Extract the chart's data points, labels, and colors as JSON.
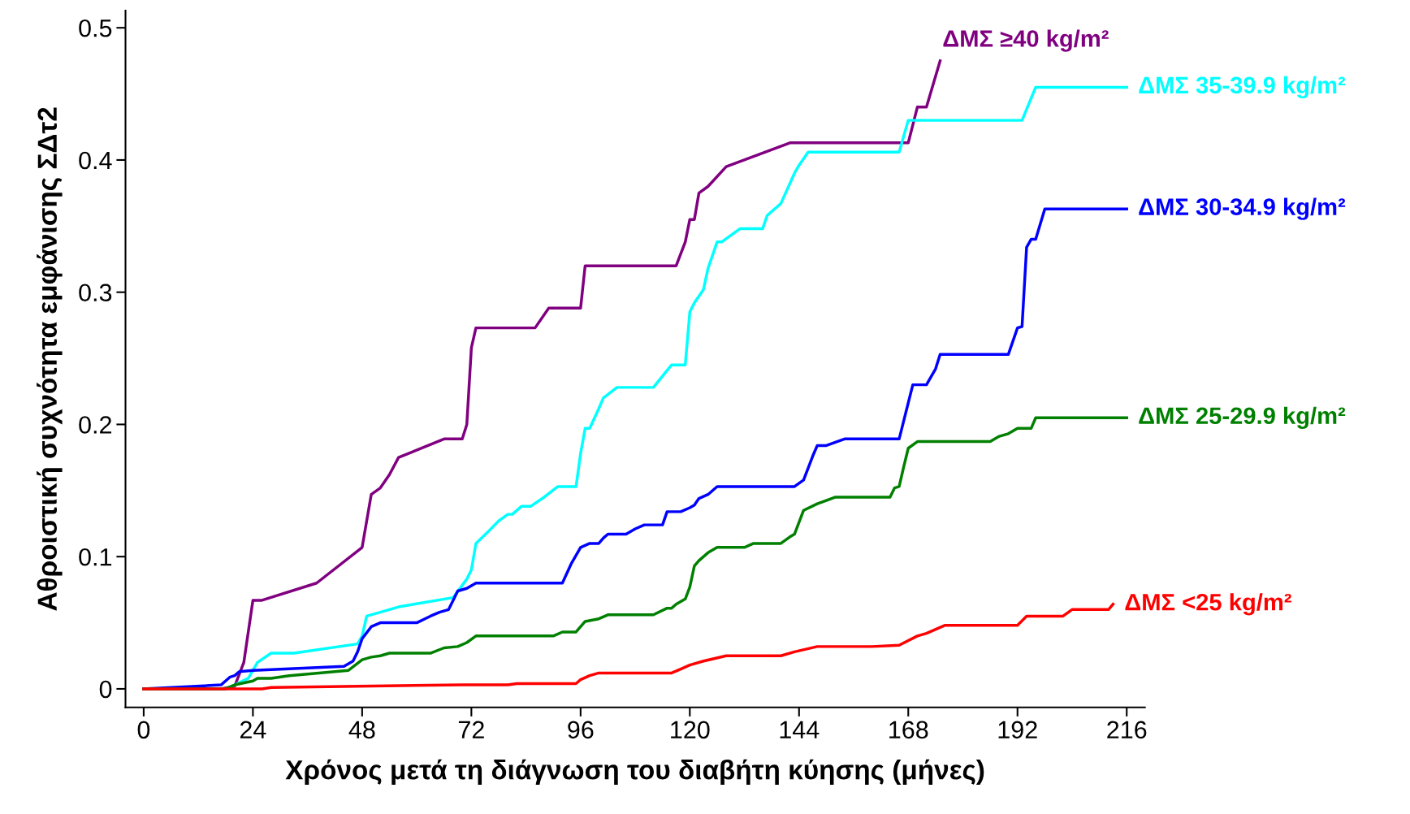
{
  "chart_data": {
    "type": "line",
    "xlabel": "Χρόνος μετά τη διάγνωση του διαβήτη κύησης (μήνες)",
    "ylabel": "Αθροιστική συχνότητα εμφάνισης ΣΔτ2",
    "xlim": [
      -4,
      220
    ],
    "ylim": [
      -0.014,
      0.513
    ],
    "xticks": [
      0,
      24,
      48,
      72,
      96,
      120,
      144,
      168,
      192,
      216
    ],
    "yticks": [
      0,
      0.1,
      0.2,
      0.3,
      0.4,
      0.5
    ],
    "grid": false,
    "legend": false,
    "line_style": "solid",
    "marker": "none",
    "series": [
      {
        "name": "ΔΜΣ ≥40 kg/m²",
        "color": "#800080",
        "x": [
          0,
          17,
          20,
          22,
          24,
          26,
          38,
          48,
          50,
          52,
          54,
          56,
          66,
          70,
          71,
          72,
          73,
          86,
          89,
          96,
          97,
          117,
          119,
          120,
          121,
          122,
          124,
          128,
          142,
          168,
          170,
          172,
          175
        ],
        "values": [
          0,
          0,
          0.002,
          0.02,
          0.067,
          0.067,
          0.08,
          0.107,
          0.147,
          0.152,
          0.162,
          0.175,
          0.189,
          0.189,
          0.2,
          0.258,
          0.273,
          0.273,
          0.288,
          0.288,
          0.32,
          0.32,
          0.338,
          0.355,
          0.355,
          0.375,
          0.38,
          0.395,
          0.413,
          0.413,
          0.44,
          0.44,
          0.475
        ]
      },
      {
        "name": "ΔΜΣ 35-39.9 kg/m²",
        "color": "#00ffff",
        "x": [
          0,
          18,
          20,
          23,
          25,
          28,
          33,
          47,
          48,
          49,
          52,
          56,
          68,
          71,
          72,
          73,
          76,
          78,
          80,
          81,
          83,
          85,
          88,
          91,
          95,
          96,
          97,
          98,
          100,
          101,
          104,
          112,
          116,
          119,
          120,
          121,
          123,
          124,
          126,
          127,
          131,
          136,
          137,
          140,
          143,
          144,
          146,
          166,
          168,
          193,
          196,
          216
        ],
        "values": [
          0,
          0,
          0.003,
          0.008,
          0.02,
          0.027,
          0.027,
          0.034,
          0.04,
          0.055,
          0.058,
          0.062,
          0.069,
          0.083,
          0.09,
          0.11,
          0.12,
          0.127,
          0.132,
          0.132,
          0.138,
          0.138,
          0.145,
          0.153,
          0.153,
          0.178,
          0.197,
          0.197,
          0.212,
          0.22,
          0.228,
          0.228,
          0.245,
          0.245,
          0.285,
          0.292,
          0.302,
          0.318,
          0.338,
          0.338,
          0.348,
          0.348,
          0.358,
          0.367,
          0.39,
          0.396,
          0.406,
          0.406,
          0.43,
          0.43,
          0.455,
          0.455
        ]
      },
      {
        "name": "ΔΜΣ 30-34.9 kg/m²",
        "color": "#0000ff",
        "x": [
          0,
          17,
          19,
          20,
          21,
          24,
          44,
          46,
          47,
          48,
          50,
          52,
          60,
          63,
          65,
          67,
          68,
          69,
          71,
          73,
          92,
          94,
          96,
          98,
          100,
          101,
          102,
          106,
          108,
          110,
          114,
          115,
          118,
          120,
          121,
          122,
          124,
          126,
          143,
          145,
          147,
          148,
          150,
          154,
          166,
          169,
          172,
          174,
          175,
          190,
          192,
          193,
          194,
          195,
          196,
          198,
          216
        ],
        "values": [
          0,
          0.003,
          0.009,
          0.01,
          0.013,
          0.014,
          0.017,
          0.021,
          0.028,
          0.038,
          0.047,
          0.05,
          0.05,
          0.055,
          0.058,
          0.06,
          0.067,
          0.074,
          0.076,
          0.08,
          0.08,
          0.095,
          0.107,
          0.11,
          0.11,
          0.114,
          0.117,
          0.117,
          0.121,
          0.124,
          0.124,
          0.134,
          0.134,
          0.137,
          0.139,
          0.144,
          0.147,
          0.153,
          0.153,
          0.158,
          0.176,
          0.184,
          0.184,
          0.189,
          0.189,
          0.23,
          0.23,
          0.242,
          0.253,
          0.253,
          0.273,
          0.274,
          0.334,
          0.34,
          0.34,
          0.363,
          0.363
        ]
      },
      {
        "name": "ΔΜΣ 25-29.9 kg/m²",
        "color": "#008000",
        "x": [
          0,
          18,
          20,
          24,
          25,
          28,
          32,
          45,
          48,
          50,
          52,
          54,
          63,
          66,
          69,
          71,
          73,
          90,
          92,
          95,
          97,
          100,
          102,
          112,
          115,
          116,
          117,
          118,
          119,
          120,
          121,
          122,
          124,
          126,
          132,
          134,
          140,
          142,
          143,
          145,
          148,
          152,
          164,
          165,
          166,
          167,
          168,
          170,
          186,
          188,
          190,
          192,
          195,
          196,
          216
        ],
        "values": [
          0,
          0,
          0.003,
          0.006,
          0.008,
          0.008,
          0.01,
          0.014,
          0.022,
          0.024,
          0.025,
          0.027,
          0.027,
          0.031,
          0.032,
          0.035,
          0.04,
          0.04,
          0.043,
          0.043,
          0.051,
          0.053,
          0.056,
          0.056,
          0.061,
          0.061,
          0.064,
          0.066,
          0.068,
          0.077,
          0.093,
          0.097,
          0.103,
          0.107,
          0.107,
          0.11,
          0.11,
          0.115,
          0.117,
          0.135,
          0.14,
          0.145,
          0.145,
          0.152,
          0.153,
          0.168,
          0.182,
          0.187,
          0.187,
          0.191,
          0.193,
          0.197,
          0.197,
          0.205,
          0.205
        ]
      },
      {
        "name": "ΔΜΣ <25 kg/m²",
        "color": "#ff0000",
        "x": [
          0,
          26,
          28,
          47,
          70,
          80,
          82,
          95,
          96,
          98,
          100,
          116,
          118,
          120,
          123,
          128,
          140,
          143,
          148,
          160,
          166,
          170,
          172,
          176,
          192,
          194,
          202,
          204,
          212,
          213
        ],
        "values": [
          0,
          0,
          0.001,
          0.002,
          0.003,
          0.003,
          0.004,
          0.004,
          0.007,
          0.01,
          0.012,
          0.012,
          0.015,
          0.018,
          0.021,
          0.025,
          0.025,
          0.028,
          0.032,
          0.032,
          0.033,
          0.04,
          0.042,
          0.048,
          0.048,
          0.055,
          0.055,
          0.06,
          0.06,
          0.064
        ]
      }
    ]
  }
}
